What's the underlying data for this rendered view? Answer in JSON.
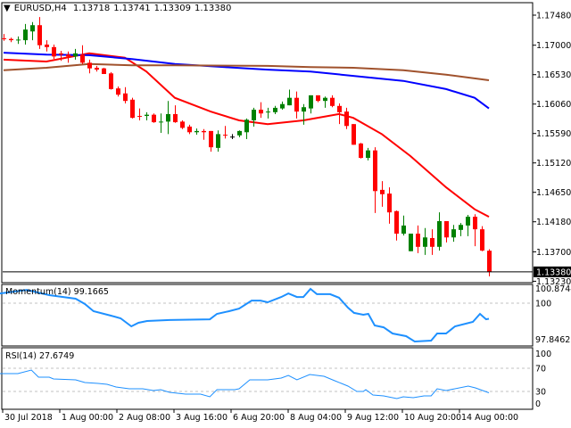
{
  "header": {
    "symbol": "EURUSD,H4",
    "open": "1.13718",
    "high": "1.13741",
    "low": "1.13309",
    "close": "1.13380"
  },
  "colors": {
    "bull": "#008000",
    "bear": "#ff0000",
    "ma_fast": "#ff0000",
    "ma_mid": "#0000ff",
    "ma_slow": "#a0522d",
    "indicator": "#1e90ff",
    "level": "#c0c0c0"
  },
  "chart_data": {
    "type": "candlestick",
    "price_axis": {
      "ticks": [
        "1.17480",
        "1.17000",
        "1.16530",
        "1.16060",
        "1.15590",
        "1.15120",
        "1.14650",
        "1.14180",
        "1.13700",
        "1.13230"
      ],
      "current_price": "1.13380"
    },
    "time_axis": {
      "labels": [
        "30 Jul 2018",
        "1 Aug 00:00",
        "2 Aug 08:00",
        "3 Aug 16:00",
        "6 Aug 20:00",
        "8 Aug 04:00",
        "9 Aug 12:00",
        "10 Aug 20:00",
        "14 Aug 00:00"
      ],
      "label_bar_index": [
        1,
        9,
        17,
        25,
        33,
        41,
        49,
        57,
        65
      ]
    },
    "candles_ohlc": [
      [
        1.1711,
        1.1718,
        1.1707,
        1.171
      ],
      [
        1.171,
        1.1712,
        1.1705,
        1.1708
      ],
      [
        1.1708,
        1.1714,
        1.1702,
        1.1709
      ],
      [
        1.1708,
        1.1734,
        1.1701,
        1.1725
      ],
      [
        1.1722,
        1.1737,
        1.1708,
        1.1732
      ],
      [
        1.1732,
        1.1745,
        1.1694,
        1.17
      ],
      [
        1.1701,
        1.1708,
        1.169,
        1.1697
      ],
      [
        1.1697,
        1.1701,
        1.1678,
        1.1682
      ],
      [
        1.1687,
        1.1691,
        1.1675,
        1.1685
      ],
      [
        1.1685,
        1.169,
        1.1672,
        1.1682
      ],
      [
        1.1682,
        1.1694,
        1.1677,
        1.1687
      ],
      [
        1.1685,
        1.17,
        1.167,
        1.1672
      ],
      [
        1.1672,
        1.1677,
        1.1655,
        1.1663
      ],
      [
        1.1664,
        1.1667,
        1.1658,
        1.1661
      ],
      [
        1.1663,
        1.1664,
        1.1654,
        1.1654
      ],
      [
        1.1655,
        1.1657,
        1.1629,
        1.163
      ],
      [
        1.1631,
        1.1634,
        1.1618,
        1.1621
      ],
      [
        1.1623,
        1.1633,
        1.1607,
        1.1611
      ],
      [
        1.1613,
        1.1616,
        1.1583,
        1.1584
      ],
      [
        1.1587,
        1.1599,
        1.158,
        1.1586
      ],
      [
        1.1587,
        1.1593,
        1.158,
        1.1589
      ],
      [
        1.1589,
        1.1591,
        1.1576,
        1.1577
      ],
      [
        1.1577,
        1.1591,
        1.156,
        1.1578
      ],
      [
        1.1578,
        1.1611,
        1.1558,
        1.159
      ],
      [
        1.159,
        1.1604,
        1.1576,
        1.1577
      ],
      [
        1.1578,
        1.158,
        1.1566,
        1.1568
      ],
      [
        1.157,
        1.1573,
        1.1558,
        1.1561
      ],
      [
        1.1561,
        1.1567,
        1.1557,
        1.1563
      ],
      [
        1.1563,
        1.1566,
        1.1549,
        1.1561
      ],
      [
        1.1563,
        1.1563,
        1.153,
        1.1537
      ],
      [
        1.1536,
        1.1564,
        1.153,
        1.1558
      ],
      [
        1.1557,
        1.1571,
        1.1551,
        1.1556
      ],
      [
        1.1554,
        1.1558,
        1.155,
        1.1554
      ],
      [
        1.1556,
        1.1564,
        1.1553,
        1.1563
      ],
      [
        1.1561,
        1.1583,
        1.155,
        1.1581
      ],
      [
        1.158,
        1.16,
        1.157,
        1.1597
      ],
      [
        1.1597,
        1.1609,
        1.1584,
        1.1591
      ],
      [
        1.1593,
        1.16,
        1.1583,
        1.1594
      ],
      [
        1.1593,
        1.1603,
        1.159,
        1.16
      ],
      [
        1.1599,
        1.161,
        1.1597,
        1.1606
      ],
      [
        1.1604,
        1.1629,
        1.1604,
        1.1616
      ],
      [
        1.1616,
        1.1626,
        1.1583,
        1.1594
      ],
      [
        1.1594,
        1.1606,
        1.1573,
        1.1601
      ],
      [
        1.1599,
        1.162,
        1.1591,
        1.162
      ],
      [
        1.162,
        1.162,
        1.1609,
        1.1611
      ],
      [
        1.1611,
        1.1618,
        1.16,
        1.1616
      ],
      [
        1.1616,
        1.162,
        1.1601,
        1.1603
      ],
      [
        1.1603,
        1.1607,
        1.1574,
        1.1593
      ],
      [
        1.1594,
        1.16,
        1.1566,
        1.1571
      ],
      [
        1.1574,
        1.1574,
        1.1541,
        1.1541
      ],
      [
        1.1543,
        1.1544,
        1.1519,
        1.152
      ],
      [
        1.152,
        1.1536,
        1.1516,
        1.1532
      ],
      [
        1.1532,
        1.1537,
        1.1432,
        1.1467
      ],
      [
        1.1469,
        1.1483,
        1.1442,
        1.1462
      ],
      [
        1.1463,
        1.1473,
        1.1415,
        1.1433
      ],
      [
        1.1435,
        1.1436,
        1.1388,
        1.1399
      ],
      [
        1.1399,
        1.1428,
        1.1396,
        1.1412
      ],
      [
        1.1371,
        1.1399,
        1.1371,
        1.1399
      ],
      [
        1.1399,
        1.1412,
        1.1368,
        1.1378
      ],
      [
        1.1378,
        1.1408,
        1.1365,
        1.1393
      ],
      [
        1.1392,
        1.1406,
        1.1365,
        1.1378
      ],
      [
        1.1378,
        1.1433,
        1.1372,
        1.1419
      ],
      [
        1.1419,
        1.1419,
        1.1385,
        1.1393
      ],
      [
        1.1393,
        1.1413,
        1.1386,
        1.1406
      ],
      [
        1.1405,
        1.1416,
        1.1395,
        1.1413
      ],
      [
        1.1412,
        1.1429,
        1.1395,
        1.1426
      ],
      [
        1.1426,
        1.143,
        1.1379,
        1.1406
      ],
      [
        1.1406,
        1.1411,
        1.1371,
        1.1372
      ],
      [
        1.13718,
        1.13741,
        1.13309,
        1.1338
      ]
    ],
    "moving_averages": [
      {
        "color_key": "ma_fast",
        "points": [
          [
            1,
            1.1677
          ],
          [
            7,
            1.1674
          ],
          [
            13,
            1.1687
          ],
          [
            18,
            1.168
          ],
          [
            21,
            1.1658
          ],
          [
            25,
            1.1616
          ],
          [
            30,
            1.1594
          ],
          [
            34,
            1.158
          ],
          [
            38,
            1.1574
          ],
          [
            43,
            1.158
          ],
          [
            48,
            1.159
          ],
          [
            50,
            1.1584
          ],
          [
            54,
            1.1558
          ],
          [
            58,
            1.1523
          ],
          [
            63,
            1.1473
          ],
          [
            67,
            1.1438
          ],
          [
            69,
            1.1426
          ]
        ]
      },
      {
        "color_key": "ma_mid",
        "points": [
          [
            1,
            1.1688
          ],
          [
            7,
            1.1685
          ],
          [
            13,
            1.1684
          ],
          [
            19,
            1.1678
          ],
          [
            25,
            1.167
          ],
          [
            32,
            1.1665
          ],
          [
            38,
            1.1661
          ],
          [
            44,
            1.1658
          ],
          [
            50,
            1.1651
          ],
          [
            57,
            1.1643
          ],
          [
            63,
            1.163
          ],
          [
            67,
            1.1616
          ],
          [
            69,
            1.1599
          ]
        ]
      },
      {
        "color_key": "ma_slow",
        "points": [
          [
            1,
            1.166
          ],
          [
            7,
            1.1664
          ],
          [
            13,
            1.167
          ],
          [
            19,
            1.1668
          ],
          [
            25,
            1.1668
          ],
          [
            38,
            1.1667
          ],
          [
            44,
            1.1665
          ],
          [
            50,
            1.1664
          ],
          [
            57,
            1.166
          ],
          [
            63,
            1.1653
          ],
          [
            69,
            1.1644
          ]
        ]
      }
    ],
    "momentum": {
      "label": "Momentum(14) 99.1665",
      "axis_max": "100.8744",
      "level": "100",
      "axis_min": "97.8462",
      "points": [
        [
          0.5,
          100.52
        ],
        [
          4.25,
          100.71
        ],
        [
          7.4,
          100.43
        ],
        [
          11.1,
          100.24
        ],
        [
          12.4,
          99.95
        ],
        [
          13.6,
          99.57
        ],
        [
          16.1,
          99.33
        ],
        [
          17.4,
          99.19
        ],
        [
          18.9,
          98.76
        ],
        [
          19.9,
          98.95
        ],
        [
          21.1,
          99.05
        ],
        [
          24.25,
          99.1
        ],
        [
          29.9,
          99.14
        ],
        [
          30.9,
          99.43
        ],
        [
          32.6,
          99.57
        ],
        [
          34,
          99.71
        ],
        [
          35.75,
          100.14
        ],
        [
          37,
          100.14
        ],
        [
          38,
          100.05
        ],
        [
          39.9,
          100.33
        ],
        [
          40.9,
          100.52
        ],
        [
          42.1,
          100.33
        ],
        [
          43,
          100.33
        ],
        [
          44,
          100.76
        ],
        [
          44.9,
          100.48
        ],
        [
          46.75,
          100.48
        ],
        [
          48,
          100.29
        ],
        [
          49.25,
          99.76
        ],
        [
          50.1,
          99.48
        ],
        [
          51.4,
          99.38
        ],
        [
          52.1,
          99.43
        ],
        [
          53,
          98.81
        ],
        [
          54.25,
          98.71
        ],
        [
          55.5,
          98.38
        ],
        [
          57.4,
          98.24
        ],
        [
          58.6,
          97.95
        ],
        [
          60.9,
          98.0
        ],
        [
          61.75,
          98.38
        ],
        [
          63,
          98.38
        ],
        [
          64.25,
          98.76
        ],
        [
          66.75,
          99.0
        ],
        [
          67.75,
          99.43
        ],
        [
          68.6,
          99.14
        ],
        [
          69,
          99.1665
        ]
      ]
    },
    "rsi": {
      "label": "RSI(14) 27.6749",
      "axis_labels": [
        "100",
        "70",
        "30",
        "0"
      ],
      "levels": [
        70,
        30
      ],
      "points": [
        [
          0.5,
          60.8
        ],
        [
          3,
          60.8
        ],
        [
          4.9,
          66.9
        ],
        [
          5.9,
          54.6
        ],
        [
          7.4,
          54.6
        ],
        [
          8,
          51.5
        ],
        [
          11.1,
          50.0
        ],
        [
          12.4,
          45.4
        ],
        [
          14.25,
          43.8
        ],
        [
          15.5,
          42.3
        ],
        [
          16.75,
          37.7
        ],
        [
          18.6,
          34.6
        ],
        [
          20.5,
          34.6
        ],
        [
          22,
          31.5
        ],
        [
          23,
          33.1
        ],
        [
          24.25,
          28.5
        ],
        [
          26.5,
          25.4
        ],
        [
          28.6,
          25.4
        ],
        [
          29.9,
          20.8
        ],
        [
          30.9,
          33.1
        ],
        [
          33.4,
          33.1
        ],
        [
          34,
          34.6
        ],
        [
          35.5,
          50.0
        ],
        [
          38,
          50.0
        ],
        [
          39.9,
          53.1
        ],
        [
          40.9,
          57.7
        ],
        [
          42.1,
          50.0
        ],
        [
          43.9,
          59.2
        ],
        [
          45.9,
          56.2
        ],
        [
          47.4,
          48.5
        ],
        [
          49.25,
          39.2
        ],
        [
          50.5,
          30.0
        ],
        [
          51.4,
          30.0
        ],
        [
          51.75,
          33.1
        ],
        [
          52.75,
          23.8
        ],
        [
          54.25,
          22.3
        ],
        [
          56.1,
          17.7
        ],
        [
          57,
          20.8
        ],
        [
          58.4,
          19.2
        ],
        [
          59.9,
          22.3
        ],
        [
          60.9,
          22.3
        ],
        [
          61.75,
          34.6
        ],
        [
          63,
          31.5
        ],
        [
          66.1,
          39.2
        ],
        [
          67.1,
          36.2
        ],
        [
          69,
          27.6749
        ]
      ]
    }
  }
}
